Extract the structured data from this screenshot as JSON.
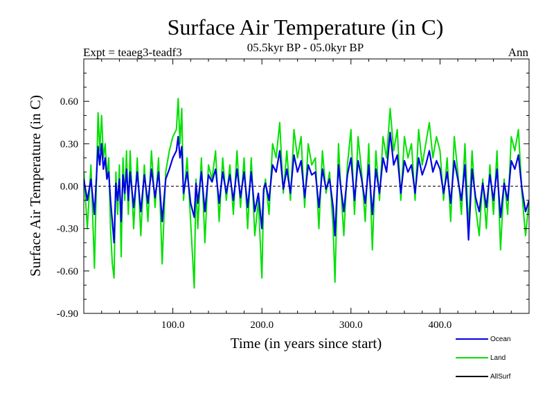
{
  "chart_data": {
    "type": "line",
    "title": "Surface Air Temperature (in C)",
    "subtitle": "05.5kyr BP - 05.0kyr BP",
    "experiment": "Expt = teaeg3-teadf3",
    "season": "Ann",
    "xlabel": "Time (in years since start)",
    "ylabel": "Surface Air Temperature (in C)",
    "xlim": [
      0,
      500
    ],
    "ylim": [
      -0.9,
      0.9
    ],
    "x_ticks": [
      100,
      200,
      300,
      400
    ],
    "x_tick_labels": [
      "100.0",
      "200.0",
      "300.0",
      "400.0"
    ],
    "y_ticks": [
      -0.9,
      -0.6,
      -0.3,
      0.0,
      0.3,
      0.6
    ],
    "y_tick_labels": [
      "-0.90",
      "-0.60",
      "-0.30",
      "0.00",
      "0.30",
      "0.60"
    ],
    "zero_line": true,
    "legend_position": "bottom-right",
    "series": [
      {
        "name": "Land",
        "color": "#00e000",
        "x": [
          0,
          4,
          8,
          12,
          16,
          18,
          20,
          22,
          24,
          26,
          28,
          30,
          32,
          34,
          36,
          38,
          40,
          42,
          44,
          46,
          48,
          50,
          52,
          56,
          60,
          64,
          68,
          72,
          76,
          80,
          84,
          88,
          92,
          96,
          100,
          104,
          106,
          108,
          110,
          112,
          116,
          120,
          124,
          126,
          128,
          132,
          136,
          140,
          144,
          148,
          152,
          156,
          160,
          164,
          168,
          172,
          176,
          180,
          184,
          188,
          192,
          196,
          200,
          202,
          204,
          208,
          212,
          216,
          220,
          224,
          228,
          232,
          236,
          240,
          244,
          248,
          252,
          256,
          260,
          264,
          268,
          272,
          276,
          280,
          282,
          284,
          286,
          288,
          292,
          296,
          300,
          304,
          308,
          312,
          316,
          320,
          324,
          328,
          332,
          336,
          340,
          344,
          348,
          352,
          356,
          360,
          364,
          368,
          372,
          376,
          380,
          384,
          388,
          392,
          396,
          400,
          404,
          408,
          412,
          416,
          420,
          424,
          428,
          432,
          436,
          440,
          444,
          448,
          452,
          456,
          460,
          464,
          468,
          472,
          476,
          480,
          484,
          488,
          492,
          496,
          500
        ],
        "values": [
          0.1,
          -0.3,
          0.15,
          -0.58,
          0.52,
          0.25,
          0.5,
          0.2,
          0.3,
          0.05,
          0.2,
          -0.3,
          -0.55,
          -0.65,
          0.1,
          -0.2,
          0.15,
          -0.5,
          0.2,
          -0.1,
          0.25,
          -0.2,
          0.25,
          -0.3,
          0.2,
          -0.35,
          0.15,
          -0.25,
          0.25,
          -0.15,
          0.2,
          -0.55,
          0.1,
          0.25,
          0.35,
          0.4,
          0.62,
          0.3,
          0.55,
          -0.1,
          0.2,
          -0.25,
          -0.72,
          0.05,
          -0.3,
          0.2,
          -0.4,
          0.15,
          0.05,
          0.25,
          -0.25,
          0.2,
          -0.1,
          0.15,
          -0.2,
          0.25,
          -0.15,
          0.2,
          -0.3,
          0.2,
          -0.35,
          -0.1,
          -0.65,
          -0.05,
          0.05,
          -0.2,
          0.3,
          0.2,
          0.45,
          -0.05,
          0.25,
          -0.1,
          0.4,
          0.2,
          0.35,
          -0.15,
          0.3,
          0.15,
          0.2,
          -0.3,
          0.25,
          -0.05,
          0.1,
          -0.3,
          -0.68,
          -0.2,
          0.3,
          0.05,
          -0.35,
          0.15,
          0.4,
          -0.2,
          0.35,
          0.1,
          -0.25,
          0.3,
          -0.45,
          0.25,
          -0.1,
          0.35,
          0.2,
          0.55,
          0.25,
          0.4,
          -0.1,
          0.35,
          0.2,
          0.3,
          -0.1,
          0.4,
          0.15,
          0.3,
          0.45,
          0.2,
          0.35,
          0.25,
          -0.1,
          0.2,
          -0.25,
          0.35,
          0.1,
          -0.2,
          0.3,
          -0.3,
          0.25,
          -0.15,
          -0.35,
          0.05,
          -0.3,
          0.15,
          -0.2,
          0.25,
          -0.45,
          0.05,
          -0.2,
          0.35,
          0.25,
          0.4,
          -0.05,
          -0.35,
          -0.1
        ]
      },
      {
        "name": "Ocean",
        "color": "#0000e6",
        "x": [
          0,
          4,
          8,
          12,
          16,
          18,
          20,
          22,
          24,
          26,
          28,
          30,
          32,
          34,
          36,
          38,
          40,
          42,
          44,
          46,
          48,
          50,
          52,
          56,
          60,
          64,
          68,
          72,
          76,
          80,
          84,
          88,
          92,
          96,
          100,
          104,
          106,
          108,
          110,
          112,
          116,
          120,
          124,
          126,
          128,
          132,
          136,
          140,
          144,
          148,
          152,
          156,
          160,
          164,
          168,
          172,
          176,
          180,
          184,
          188,
          192,
          196,
          200,
          202,
          204,
          208,
          212,
          216,
          220,
          224,
          228,
          232,
          236,
          240,
          244,
          248,
          252,
          256,
          260,
          264,
          268,
          272,
          276,
          280,
          282,
          284,
          286,
          288,
          292,
          296,
          300,
          304,
          308,
          312,
          316,
          320,
          324,
          328,
          332,
          336,
          340,
          344,
          348,
          352,
          356,
          360,
          364,
          368,
          372,
          376,
          380,
          384,
          388,
          392,
          396,
          400,
          404,
          408,
          412,
          416,
          420,
          424,
          428,
          432,
          436,
          440,
          444,
          448,
          452,
          456,
          460,
          464,
          468,
          472,
          476,
          480,
          484,
          488,
          492,
          496,
          500
        ],
        "values": [
          0.05,
          -0.1,
          0.05,
          -0.2,
          0.28,
          0.15,
          0.3,
          0.12,
          0.2,
          0.05,
          0.1,
          -0.1,
          -0.25,
          -0.4,
          0.02,
          -0.1,
          0.05,
          -0.25,
          0.08,
          -0.05,
          0.12,
          -0.1,
          0.1,
          -0.15,
          0.1,
          -0.18,
          0.08,
          -0.12,
          0.12,
          -0.08,
          0.1,
          -0.25,
          0.05,
          0.12,
          0.2,
          0.25,
          0.35,
          0.2,
          0.28,
          -0.05,
          0.1,
          -0.12,
          -0.22,
          0.02,
          -0.12,
          0.1,
          -0.18,
          0.08,
          0.03,
          0.12,
          -0.12,
          0.1,
          -0.05,
          0.08,
          -0.1,
          0.12,
          -0.08,
          0.1,
          -0.15,
          0.1,
          -0.18,
          -0.05,
          -0.3,
          -0.02,
          0.02,
          -0.1,
          0.15,
          0.1,
          0.25,
          -0.02,
          0.12,
          -0.05,
          0.22,
          0.1,
          0.18,
          -0.08,
          0.15,
          0.08,
          0.1,
          -0.15,
          0.12,
          -0.02,
          0.05,
          -0.15,
          -0.35,
          -0.1,
          0.15,
          0.02,
          -0.18,
          0.08,
          0.2,
          -0.1,
          0.18,
          0.05,
          -0.12,
          0.15,
          -0.2,
          0.12,
          -0.05,
          0.2,
          0.1,
          0.38,
          0.15,
          0.22,
          -0.05,
          0.18,
          0.1,
          0.15,
          -0.05,
          0.2,
          0.08,
          0.15,
          0.25,
          0.1,
          0.18,
          0.12,
          -0.05,
          0.1,
          -0.12,
          0.18,
          0.05,
          -0.1,
          0.15,
          -0.38,
          0.12,
          -0.08,
          -0.18,
          0.02,
          -0.15,
          0.08,
          -0.1,
          0.12,
          -0.22,
          0.02,
          -0.1,
          0.18,
          0.12,
          0.22,
          -0.02,
          -0.18,
          -0.1
        ]
      },
      {
        "name": "AllSurf",
        "color": "#000000",
        "x": [],
        "values": []
      }
    ]
  }
}
